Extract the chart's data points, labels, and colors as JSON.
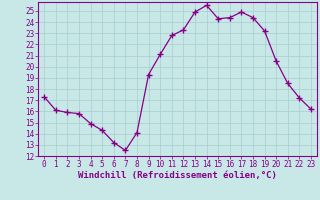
{
  "x": [
    0,
    1,
    2,
    3,
    4,
    5,
    6,
    7,
    8,
    9,
    10,
    11,
    12,
    13,
    14,
    15,
    16,
    17,
    18,
    19,
    20,
    21,
    22,
    23
  ],
  "y": [
    17.3,
    16.1,
    15.9,
    15.8,
    14.9,
    14.3,
    13.2,
    12.5,
    14.1,
    19.3,
    21.1,
    22.8,
    23.3,
    24.9,
    25.5,
    24.3,
    24.4,
    24.9,
    24.4,
    23.2,
    20.5,
    18.5,
    17.2,
    16.2
  ],
  "line_color": "#880088",
  "marker": "+",
  "markersize": 4,
  "linewidth": 0.9,
  "xlabel": "Windchill (Refroidissement éolien,°C)",
  "xlabel_fontsize": 6.5,
  "xlim": [
    -0.5,
    23.5
  ],
  "ylim": [
    12,
    25.8
  ],
  "yticks": [
    12,
    13,
    14,
    15,
    16,
    17,
    18,
    19,
    20,
    21,
    22,
    23,
    24,
    25
  ],
  "xticks": [
    0,
    1,
    2,
    3,
    4,
    5,
    6,
    7,
    8,
    9,
    10,
    11,
    12,
    13,
    14,
    15,
    16,
    17,
    18,
    19,
    20,
    21,
    22,
    23
  ],
  "tick_fontsize": 5.5,
  "bg_color": "#c8e8e8",
  "grid_color": "#aacccc",
  "tick_color": "#880088",
  "spine_color": "#880088"
}
